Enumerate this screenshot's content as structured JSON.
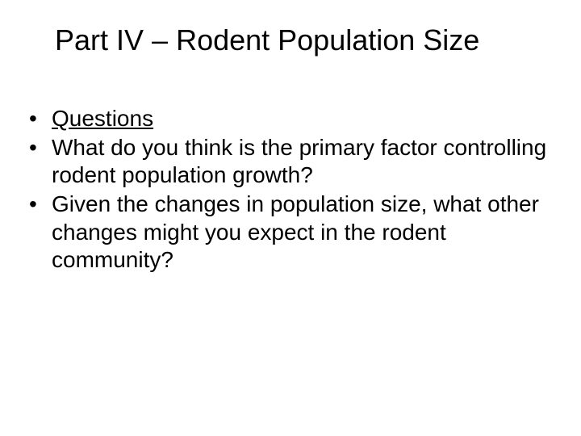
{
  "slide": {
    "title": "Part IV – Rodent Population Size",
    "bullets": [
      {
        "text": "Questions",
        "underline": true
      },
      {
        "text": "What do you think is the primary factor controlling rodent population growth?",
        "underline": false
      },
      {
        "text": "Given the changes in population size, what other changes might you expect in the rodent community?",
        "underline": false
      }
    ],
    "style": {
      "background_color": "#ffffff",
      "text_color": "#000000",
      "title_fontsize": 36,
      "body_fontsize": 28,
      "font_family": "Arial"
    }
  }
}
